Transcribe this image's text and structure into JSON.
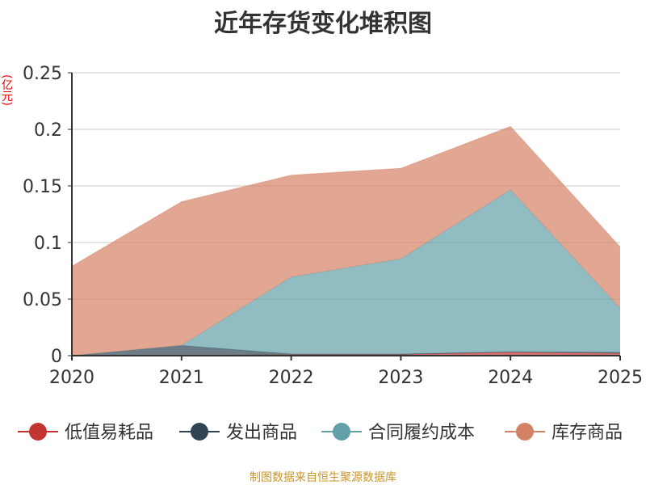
{
  "title": "近年存货变化堆积图",
  "unit": "(亿元)",
  "source": "制图数据来自恒生聚源数据库",
  "chart_data": {
    "type": "area",
    "stacked": true,
    "title": "近年存货变化堆积图",
    "ylabel": "(亿元)",
    "categories": [
      "2020",
      "2021",
      "2022",
      "2023",
      "2024",
      "2025"
    ],
    "ylim": [
      0,
      0.25
    ],
    "yticks": [
      "0",
      "0.05",
      "0.1",
      "0.15",
      "0.2",
      "0.25"
    ],
    "grid": true,
    "legend_position": "bottom",
    "series": [
      {
        "name": "低值易耗品",
        "color": "#c23531",
        "values": [
          0,
          0,
          0.001,
          0.001,
          0.003,
          0.002
        ]
      },
      {
        "name": "发出商品",
        "color": "#2f4554",
        "values": [
          0,
          0.009,
          0.0005,
          0.0005,
          0.0005,
          0.001
        ]
      },
      {
        "name": "合同履约成本",
        "color": "#61a0a8",
        "values": [
          0,
          0,
          0.068,
          0.084,
          0.143,
          0.039
        ]
      },
      {
        "name": "库存商品",
        "color": "#d48265",
        "values": [
          0.079,
          0.127,
          0.09,
          0.08,
          0.056,
          0.054
        ]
      }
    ]
  }
}
